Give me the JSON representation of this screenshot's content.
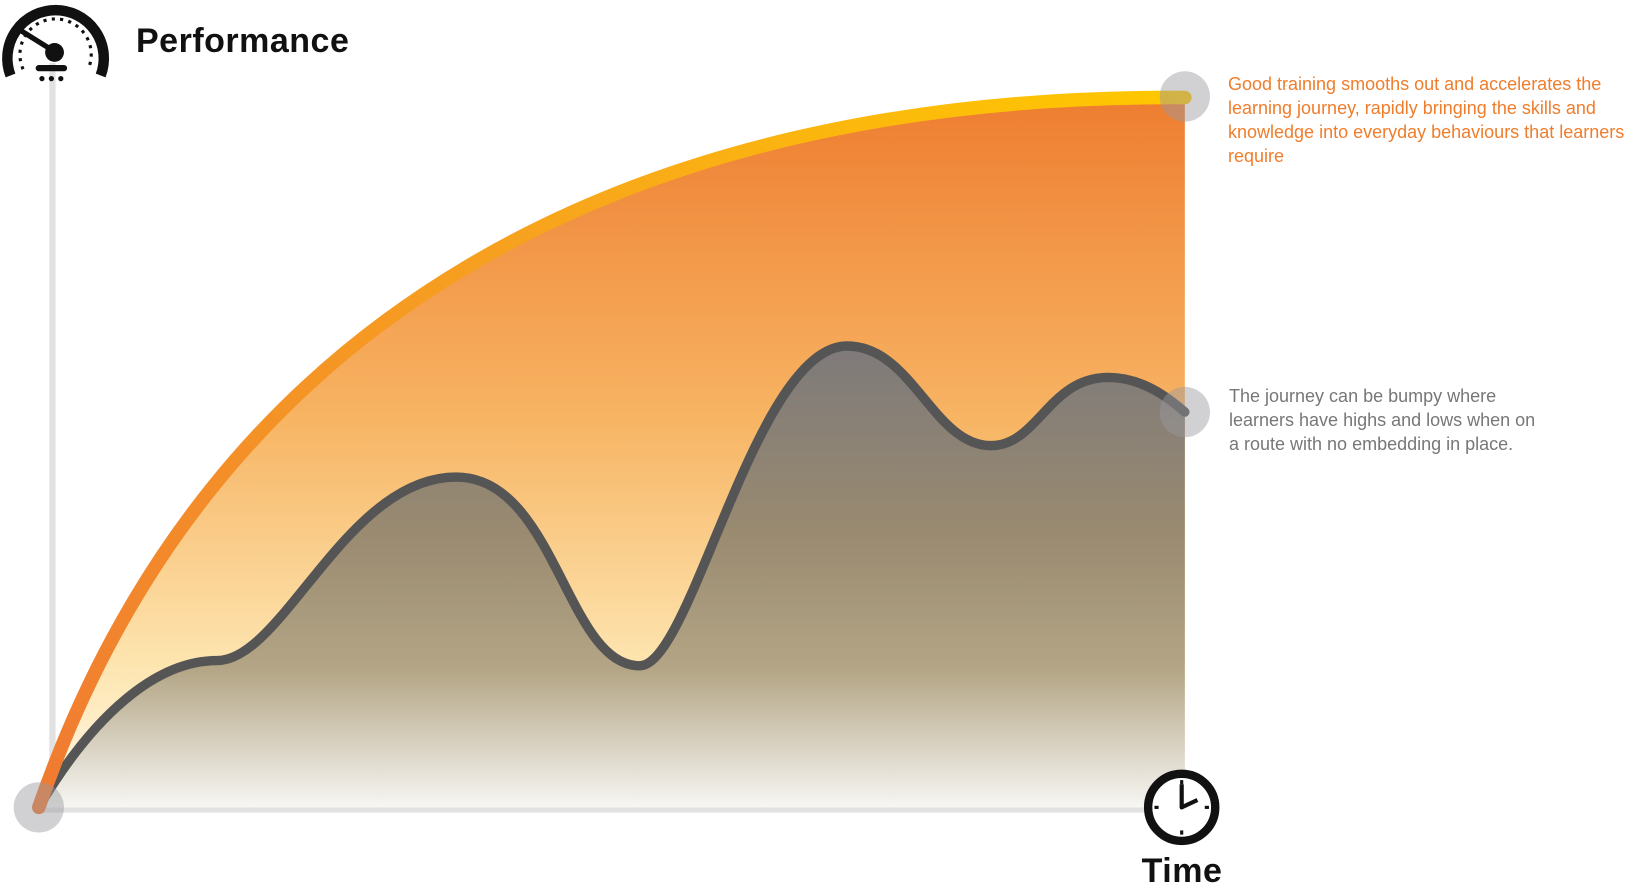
{
  "header": {
    "title": "Performance"
  },
  "axis": {
    "x_label": "Time"
  },
  "annotations": [
    {
      "text": "Good training smooths out and accelerates the learning journey, rapidly bringing the skills and knowledge into everyday behaviours that learners require"
    },
    {
      "text": "The journey can be bumpy where learners have highs and lows when on a route with no embedding in place."
    }
  ]
}
